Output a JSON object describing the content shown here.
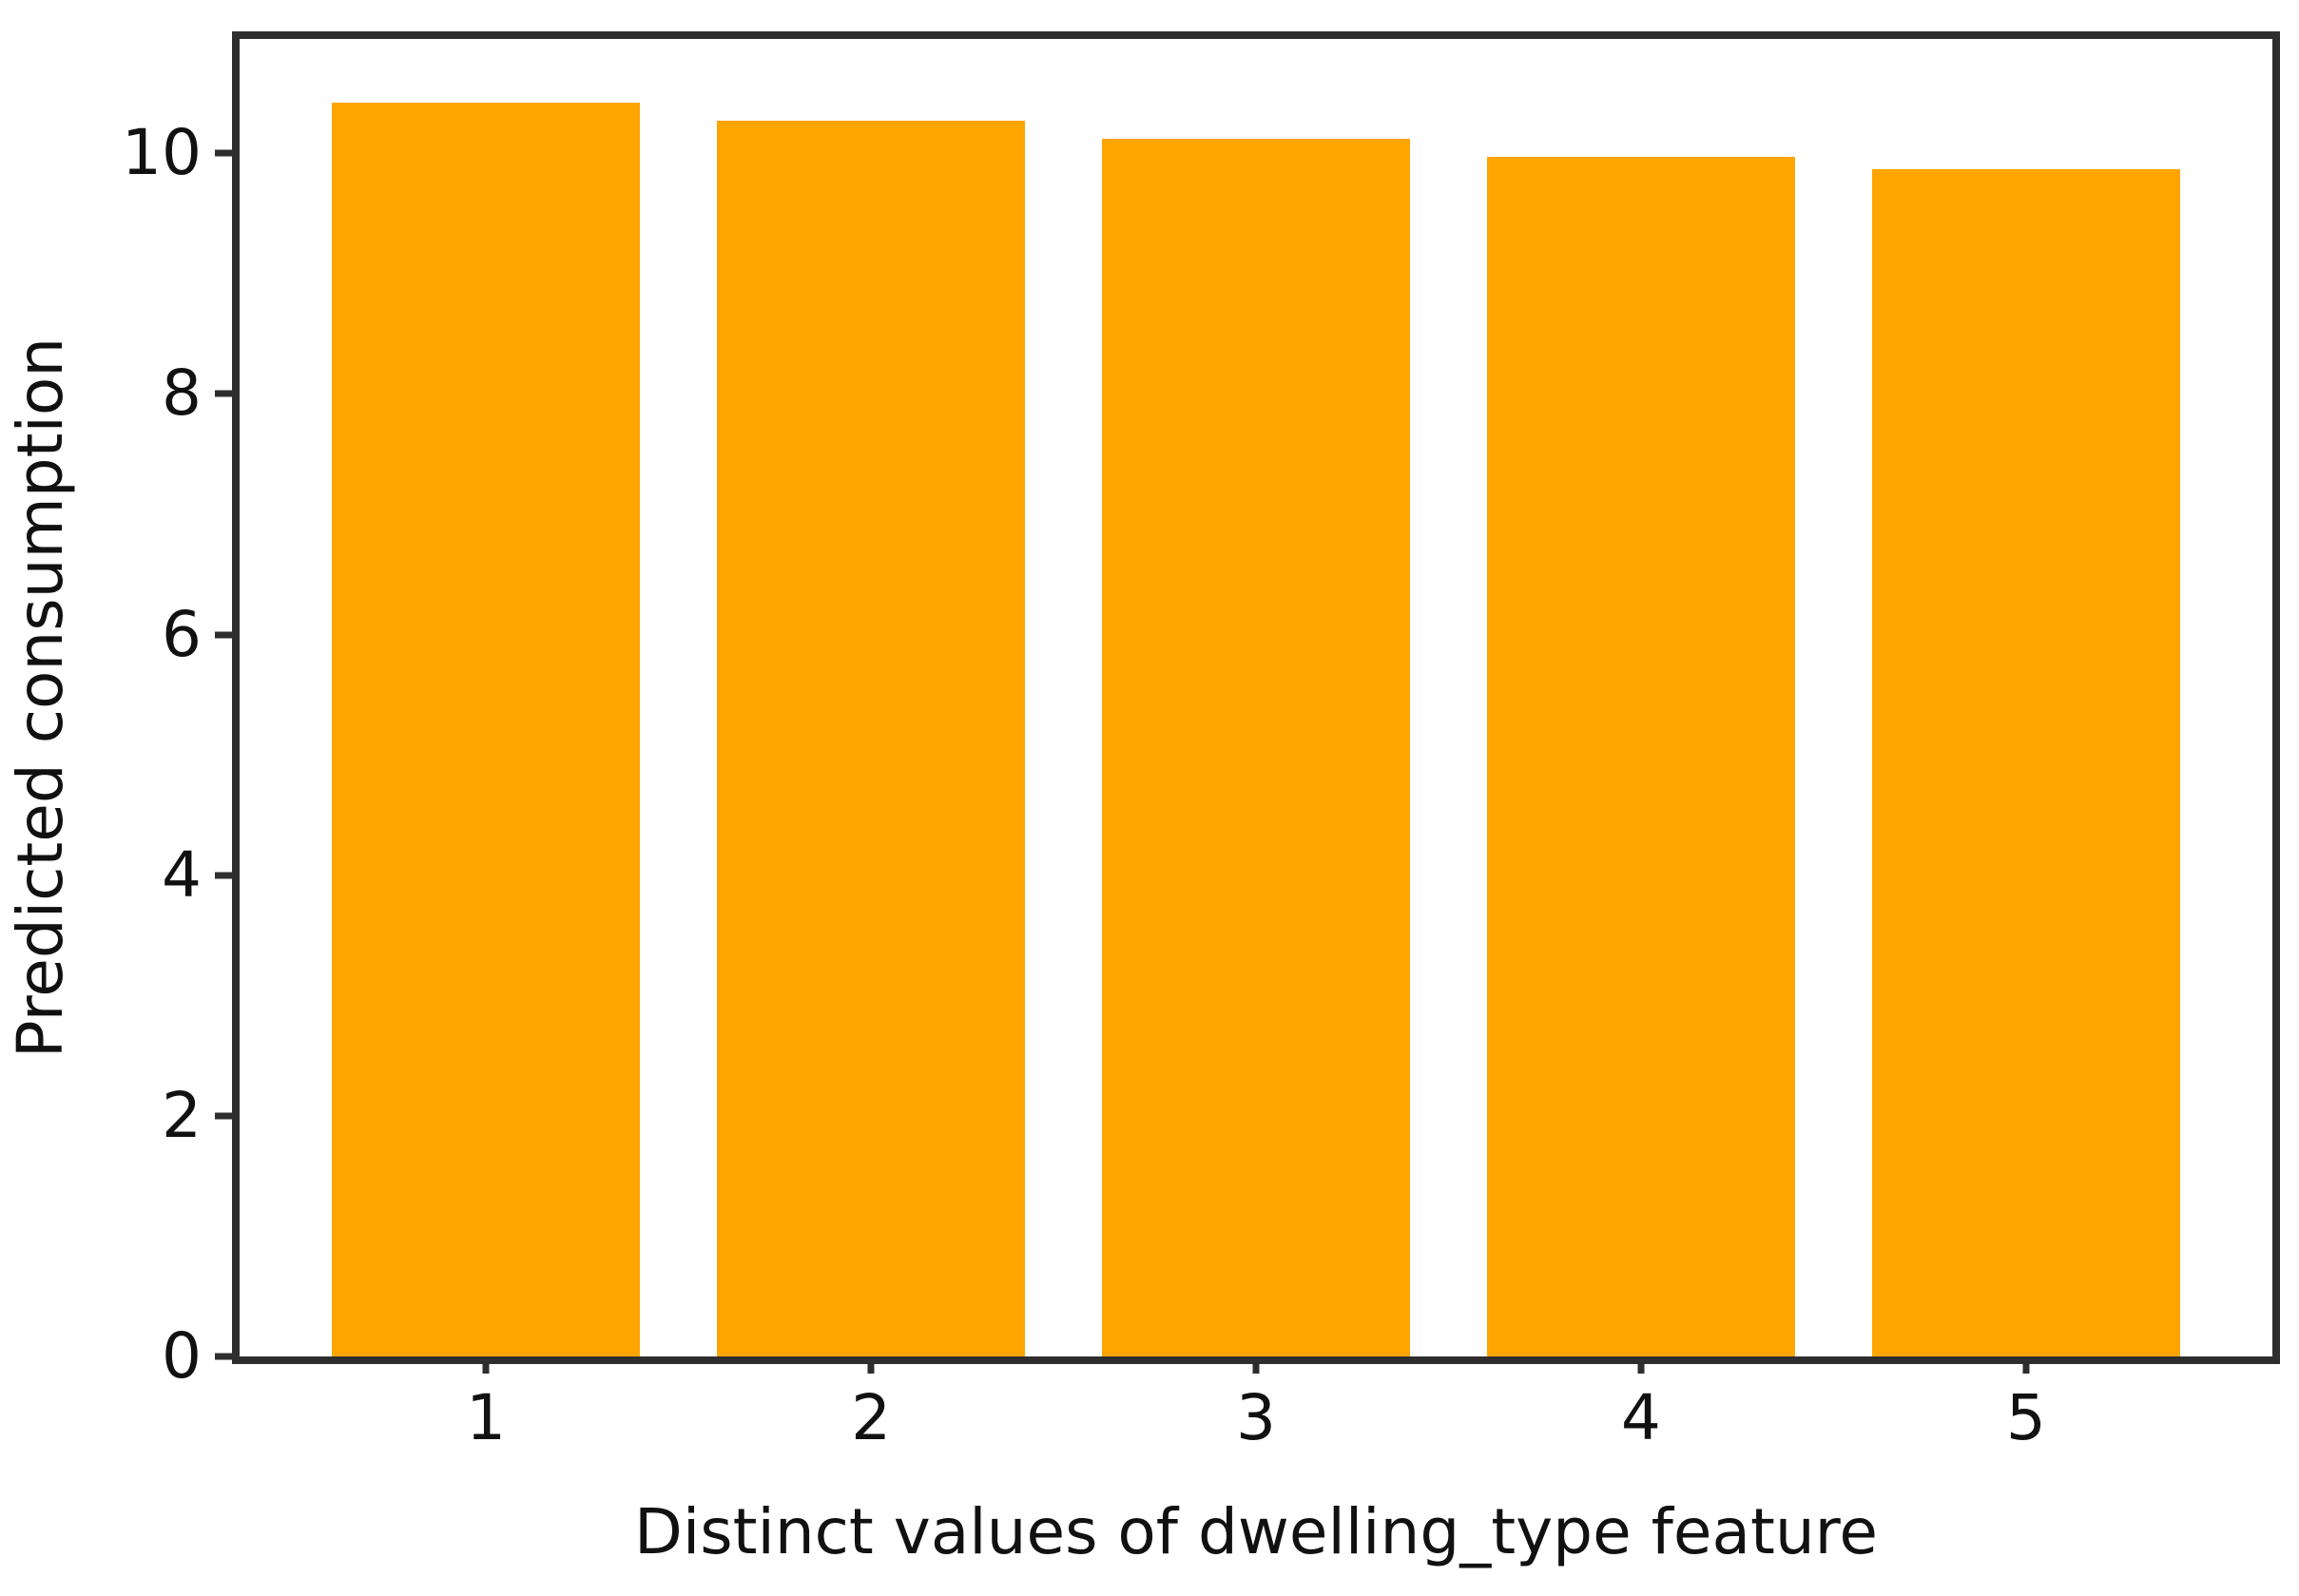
{
  "chart_data": {
    "type": "bar",
    "title": "",
    "categories": [
      "1",
      "2",
      "3",
      "4",
      "5"
    ],
    "values": [
      10.42,
      10.27,
      10.12,
      9.97,
      9.87
    ],
    "xlabel": "Distinct values of dwelling_type feature",
    "ylabel": "Predicted consumption",
    "yticks": [
      0,
      2,
      4,
      6,
      8,
      10
    ],
    "ylim": [
      0,
      10.95
    ],
    "xlim": [
      -0.64,
      4.64
    ],
    "bar_width": 0.8,
    "bar_color": "#FFA500",
    "spine_color": "#2E2E2E",
    "text_color": "#111111",
    "background": "#FFFFFF",
    "grid": false,
    "legend_position": "none"
  }
}
